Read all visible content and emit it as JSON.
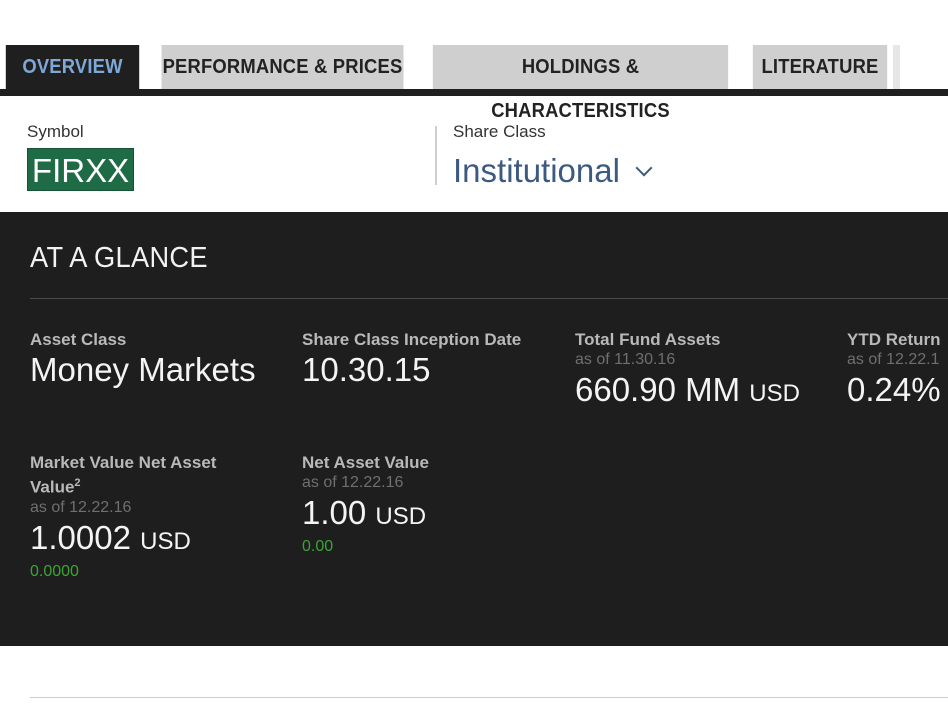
{
  "tabs": [
    {
      "label": "OVERVIEW"
    },
    {
      "label": "PERFORMANCE & PRICES"
    },
    {
      "label": "HOLDINGS & CHARACTERISTICS"
    },
    {
      "label": "LITERATURE"
    }
  ],
  "symbol": {
    "label": "Symbol",
    "value": "FIRXX"
  },
  "share_class": {
    "label": "Share Class",
    "value": "Institutional"
  },
  "glance": {
    "title": "AT A GLANCE",
    "asset_class": {
      "label": "Asset Class",
      "value": "Money Markets"
    },
    "inception": {
      "label": "Share Class Inception Date",
      "value": "10.30.15"
    },
    "total_assets": {
      "label": "Total Fund Assets",
      "asof": "as of 11.30.16",
      "value": "660.90 MM",
      "unit": "USD"
    },
    "ytd": {
      "label": "YTD Return",
      "asof": "as of 12.22.1",
      "value": "0.24%"
    },
    "mv_nav": {
      "label": "Market Value Net Asset Value",
      "note": "2",
      "asof": "as of 12.22.16",
      "value": "1.0002",
      "unit": "USD",
      "change": "0.0000"
    },
    "nav": {
      "label": "Net Asset Value",
      "asof": "as of 12.22.16",
      "value": "1.00",
      "unit": "USD",
      "change": "0.00"
    }
  },
  "colors": {
    "accent_tab": "#7fa8d8",
    "symbol_badge": "#1f6b46",
    "link": "#3c5a80",
    "positive": "#3aa535",
    "panel_bg": "#1e1e1e"
  }
}
